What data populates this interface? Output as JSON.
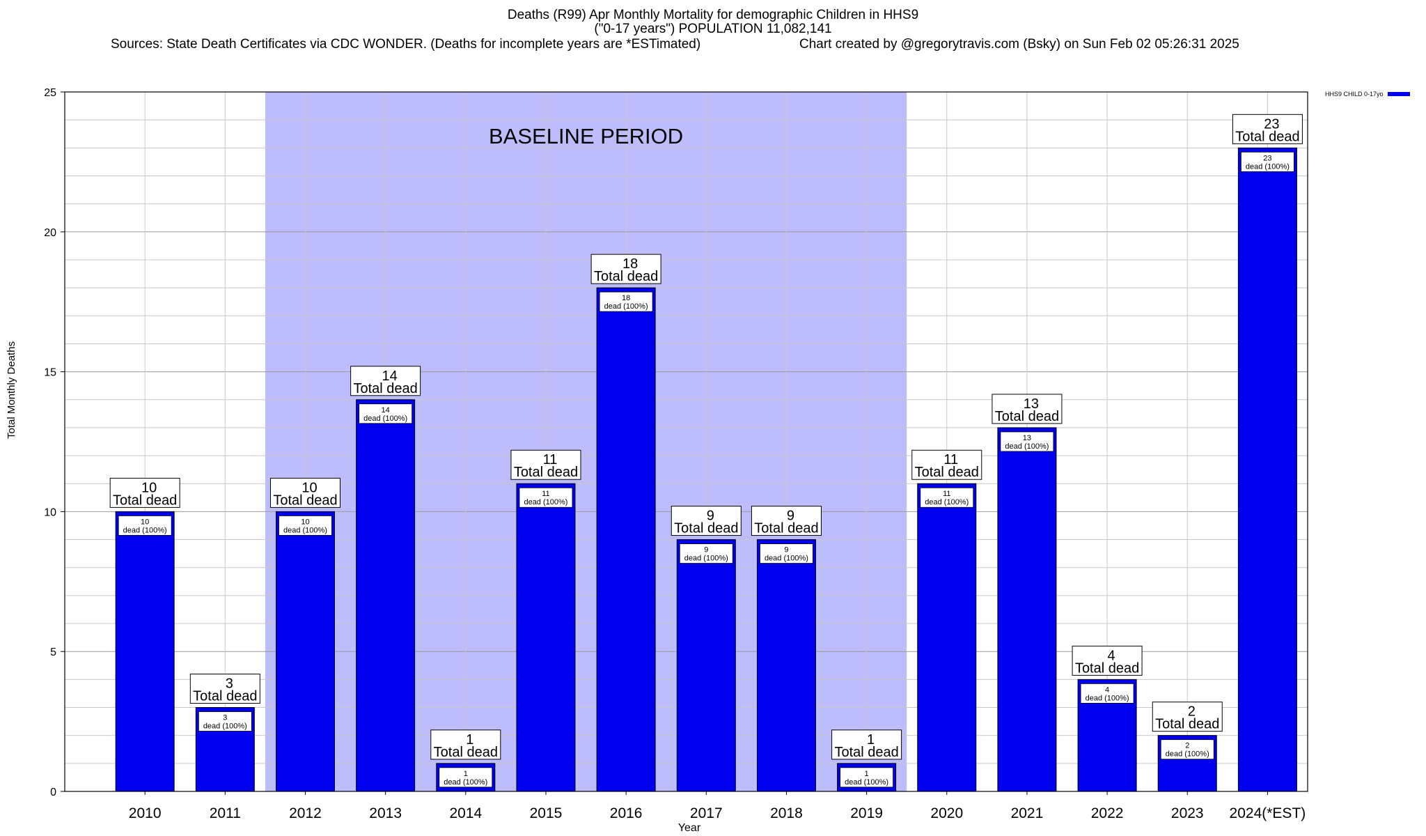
{
  "header": {
    "title": "Deaths (R99) Apr Monthly Mortality for demographic Children in HHS9",
    "subtitle": "(\"0-17 years\") POPULATION 11,082,141",
    "sources": "Sources: State Death Certificates via CDC WONDER. (Deaths for incomplete years are *ESTimated)",
    "credit": "Chart created by @gregorytravis.com (Bsky) on Sun Feb 02 05:26:31 2025"
  },
  "legend": {
    "label": "HHS9 CHILD 0-17yo",
    "color": "#0000ee"
  },
  "colors": {
    "bar": "#0000ee",
    "baseline": "#bdbdfb",
    "grid": "#c8c8c8"
  },
  "chart_data": {
    "type": "bar",
    "xlabel": "Year",
    "ylabel": "Total Monthly Deaths",
    "ylim": [
      0,
      25
    ],
    "yticks": [
      0,
      5,
      10,
      15,
      20,
      25
    ],
    "grid": true,
    "legend_position": "top-right",
    "baseline_label": "BASELINE PERIOD",
    "baseline_range": [
      "2012",
      "2019"
    ],
    "categories": [
      "2010",
      "2011",
      "2012",
      "2013",
      "2014",
      "2015",
      "2016",
      "2017",
      "2018",
      "2019",
      "2020",
      "2021",
      "2022",
      "2023",
      "2024(*EST)"
    ],
    "series": [
      {
        "name": "HHS9 CHILD 0-17yo",
        "values": [
          10,
          3,
          10,
          14,
          1,
          11,
          18,
          9,
          9,
          1,
          11,
          13,
          4,
          2,
          23
        ]
      }
    ],
    "total_label": "Total dead",
    "inner_label": "dead (100%)"
  }
}
